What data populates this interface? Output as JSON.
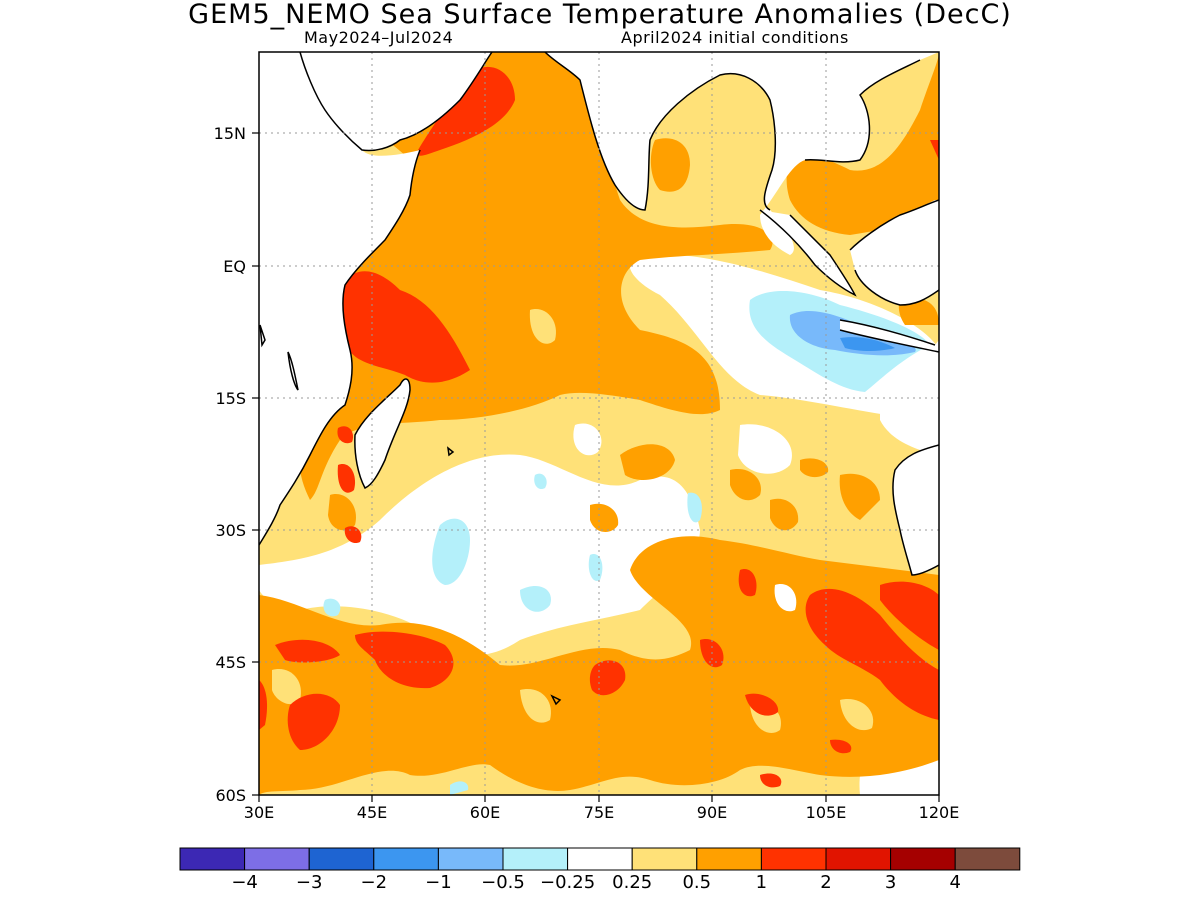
{
  "title": "GEM5_NEMO Sea Surface Temperature Anomalies (DecC)",
  "subtitle_left": "May2024–Jul2024",
  "subtitle_right": "April2024 initial conditions",
  "axes": {
    "x_ticks": [
      "30E",
      "45E",
      "60E",
      "75E",
      "90E",
      "105E",
      "120E"
    ],
    "y_ticks": [
      "15N",
      "EQ",
      "15S",
      "30S",
      "45S",
      "60S"
    ]
  },
  "colorbar": {
    "colors": [
      "#3c28b4",
      "#7d6ee6",
      "#1e64d2",
      "#3c96f0",
      "#78b9fa",
      "#b4f0fa",
      "#ffffff",
      "#ffe178",
      "#ffa000",
      "#ff3200",
      "#e11400",
      "#a50000",
      "#7d4b3c"
    ],
    "labels": [
      "−4",
      "−3",
      "−2",
      "−1",
      "−0.5",
      "−0.25",
      "0.25",
      "0.5",
      "1",
      "2",
      "3",
      "4"
    ]
  }
}
